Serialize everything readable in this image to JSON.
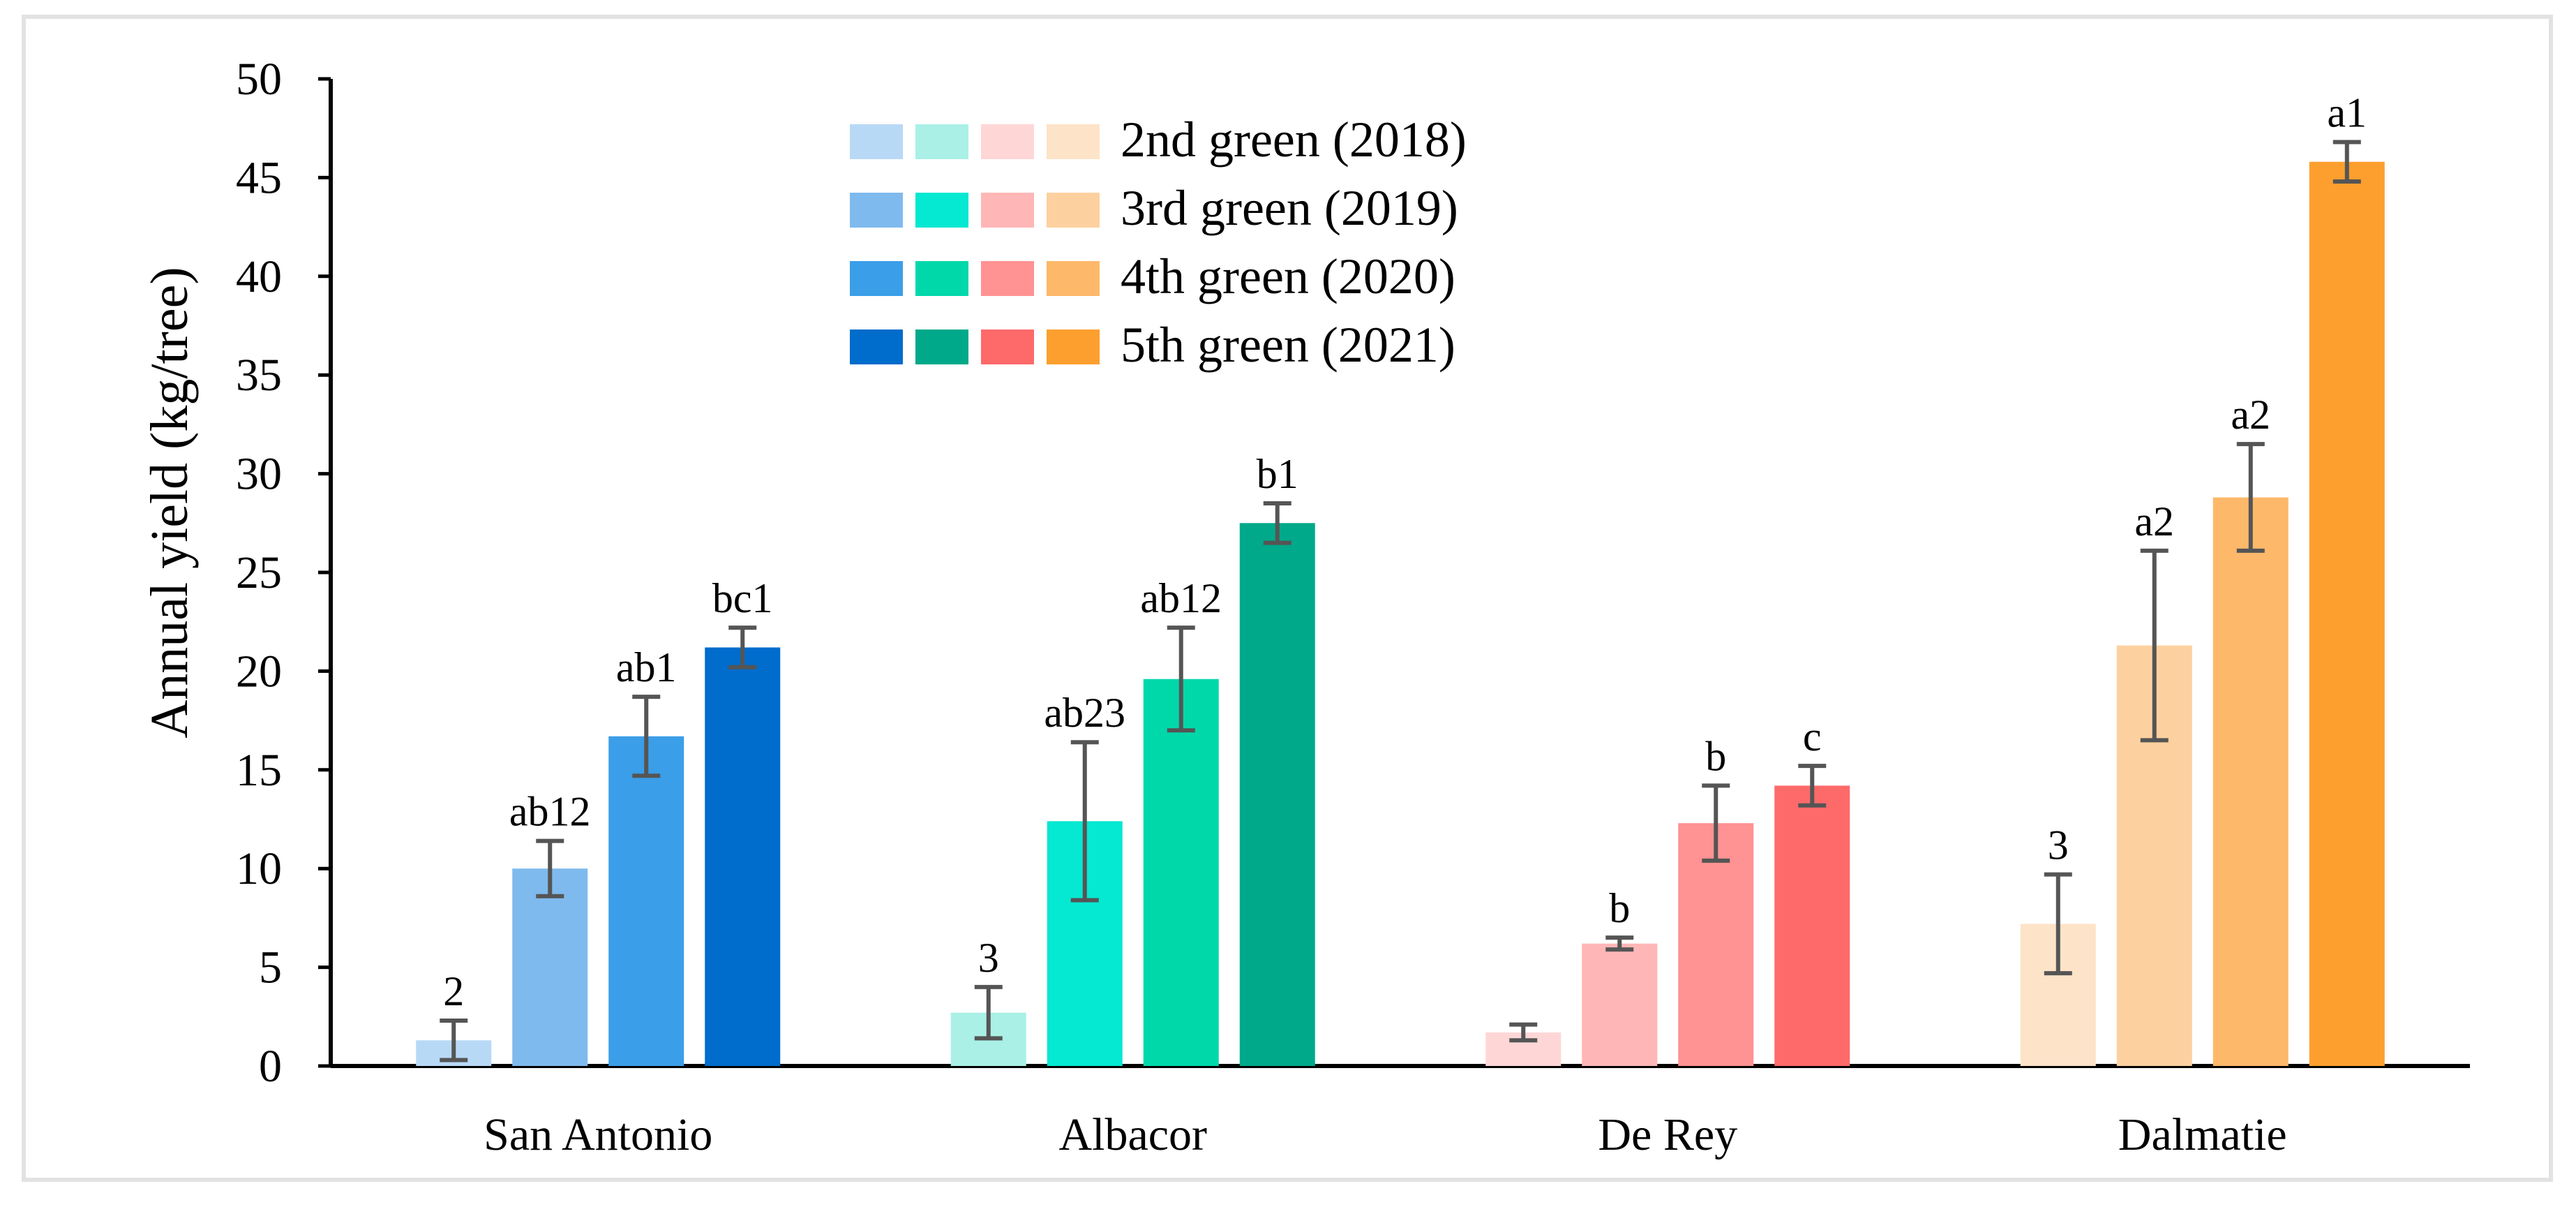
{
  "chart_data": {
    "type": "bar",
    "title": "",
    "xlabel": "",
    "ylabel": "Annual yield (kg/tree)",
    "ylim": [
      0,
      50
    ],
    "yticks": [
      0,
      5,
      10,
      15,
      20,
      25,
      30,
      35,
      40,
      45,
      50
    ],
    "categories": [
      "San Antonio",
      "Albacor",
      "De Rey",
      "Dalmatie"
    ],
    "series": [
      {
        "name": "2nd green (2018)",
        "values": [
          1.3,
          2.7,
          1.7,
          7.2
        ],
        "errors": [
          1.0,
          1.3,
          0.4,
          2.5
        ],
        "letters": [
          "2",
          "3",
          "",
          "3"
        ],
        "colors": [
          "#b8d9f6",
          "#aaf0e6",
          "#ffd6d6",
          "#fde3c8"
        ]
      },
      {
        "name": "3rd green (2019)",
        "values": [
          10.0,
          12.4,
          6.2,
          21.3
        ],
        "errors": [
          1.4,
          4.0,
          0.3,
          4.8
        ],
        "letters": [
          "ab12",
          "ab23",
          "b",
          "a2"
        ],
        "colors": [
          "#7fbaee",
          "#05e8d2",
          "#ffb6b6",
          "#fdd09f"
        ]
      },
      {
        "name": "4th green (2020)",
        "values": [
          16.7,
          19.6,
          12.3,
          28.8
        ],
        "errors": [
          2.0,
          2.6,
          1.9,
          2.7
        ],
        "letters": [
          "ab1",
          "ab12",
          "b",
          "a2"
        ],
        "colors": [
          "#3b9ee8",
          "#00d8aa",
          "#ff9292",
          "#fdb86a"
        ]
      },
      {
        "name": "5th green (2021)",
        "values": [
          21.2,
          27.5,
          14.2,
          45.8
        ],
        "errors": [
          1.0,
          1.0,
          1.0,
          1.0
        ],
        "letters": [
          "bc1",
          "b1",
          "c",
          "a1"
        ],
        "colors": [
          "#006ccc",
          "#00a98a",
          "#fe6a6a",
          "#fd9f2e"
        ]
      }
    ],
    "legend_position": "top-center"
  }
}
